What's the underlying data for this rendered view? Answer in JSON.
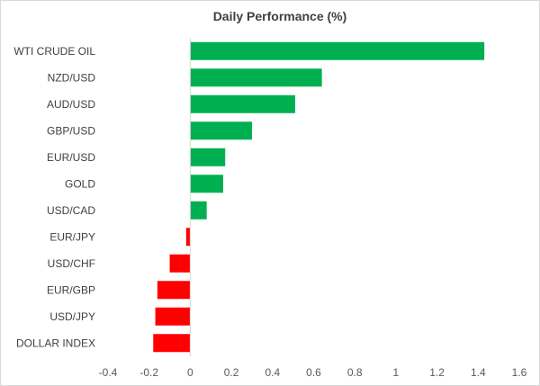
{
  "chart_data": {
    "type": "bar",
    "orientation": "horizontal",
    "title": "Daily Performance (%)",
    "categories": [
      "WTI CRUDE OIL",
      "NZD/USD",
      "AUD/USD",
      "GBP/USD",
      "EUR/USD",
      "GOLD",
      "USD/CAD",
      "EUR/JPY",
      "USD/CHF",
      "EUR/GBP",
      "USD/JPY",
      "DOLLAR INDEX"
    ],
    "values": [
      1.43,
      0.64,
      0.51,
      0.3,
      0.17,
      0.16,
      0.08,
      -0.02,
      -0.1,
      -0.16,
      -0.17,
      -0.18
    ],
    "xlim": [
      -0.4,
      1.6
    ],
    "xticks": [
      "-0.4",
      "-0.2",
      "0",
      "0.2",
      "0.4",
      "0.6",
      "0.8",
      "1",
      "1.2",
      "1.4",
      "1.6"
    ],
    "colors": {
      "positive": "#00b050",
      "negative": "#ff0000",
      "axis": "#d9d9d9"
    },
    "grid": false,
    "legend": "none"
  }
}
